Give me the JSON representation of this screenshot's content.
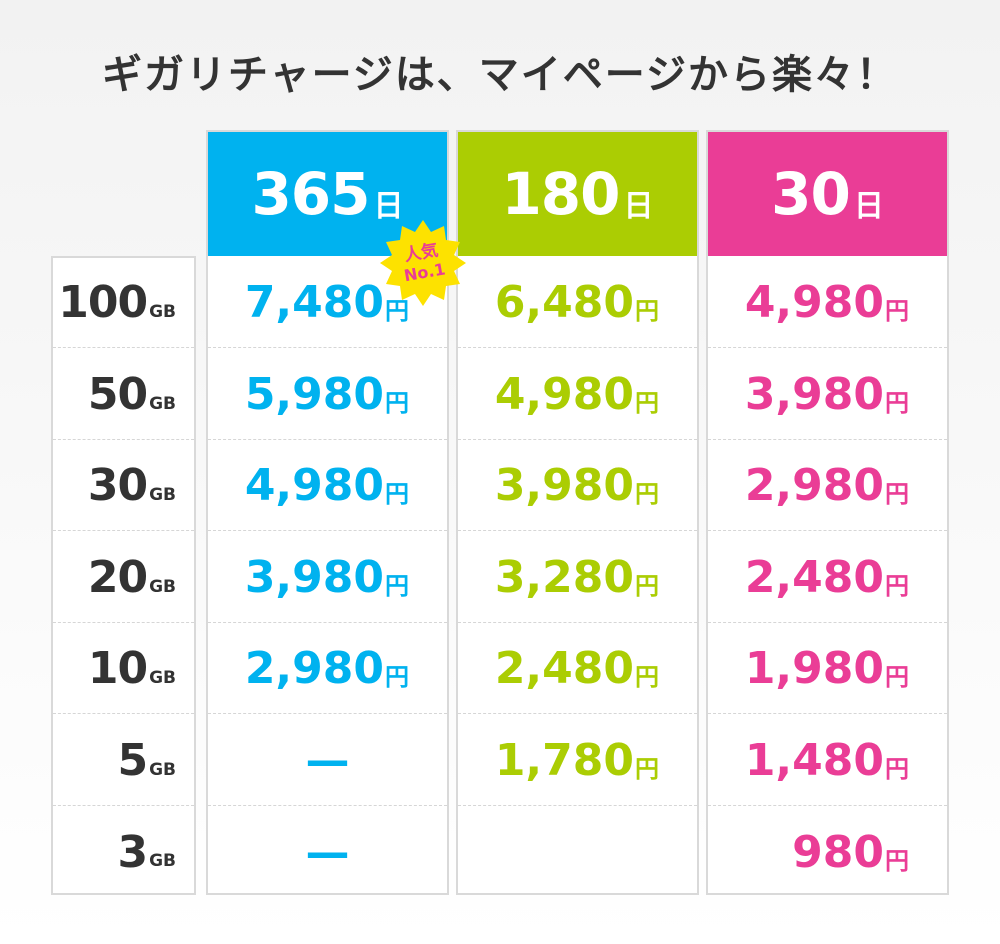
{
  "title": "ギガリチャージは、マイページから楽々！",
  "colors": {
    "plan365": "#00b2ef",
    "plan180": "#abcd03",
    "plan30": "#ea3d96",
    "badge": "#fde200"
  },
  "gb_unit": "GB",
  "yen_unit": "円",
  "day_unit": "日",
  "capacities": [
    "100",
    "50",
    "30",
    "20",
    "10",
    "5",
    "3"
  ],
  "plans": [
    {
      "days": "365",
      "prices": [
        "7,480",
        "5,980",
        "4,980",
        "3,980",
        "2,980",
        "—",
        "—"
      ]
    },
    {
      "days": "180",
      "prices": [
        "6,480",
        "4,980",
        "3,980",
        "3,280",
        "2,480",
        "1,780",
        ""
      ]
    },
    {
      "days": "30",
      "prices": [
        "4,980",
        "3,980",
        "2,980",
        "2,480",
        "1,980",
        "1,480",
        "980"
      ]
    }
  ],
  "badge": {
    "line1": "人気",
    "line2": "No.1"
  }
}
